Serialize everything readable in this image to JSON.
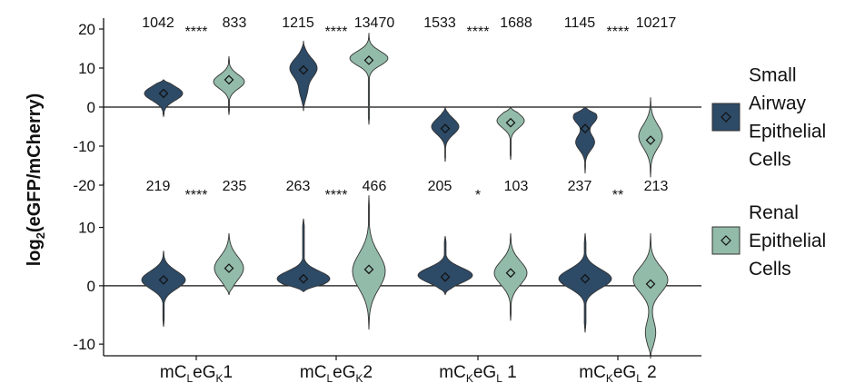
{
  "chart_data": {
    "type": "violin",
    "ylabel": "log2(eGFP/mCherry)",
    "categories": [
      "mCₗeGₖ 1",
      "mCₗeGₖ 2",
      "mCₖeGₗ 1",
      "mCₖeGₗ 2"
    ],
    "category_parts": [
      {
        "pre": "mC",
        "s1": "L",
        "mid": "eG",
        "s2": "K",
        "post": "1"
      },
      {
        "pre": "mC",
        "s1": "L",
        "mid": "eG",
        "s2": "K",
        "post": "2"
      },
      {
        "pre": "mC",
        "s1": "K",
        "mid": "eG",
        "s2": "L",
        "post": " 1"
      },
      {
        "pre": "mC",
        "s1": "K",
        "mid": "eG",
        "s2": "L",
        "post": " 2"
      }
    ],
    "legend_position": "right",
    "series": [
      {
        "name": "Small Airway Epithelial Cells",
        "legend_lines": [
          "Small",
          "Airway",
          "Epithelial",
          "Cells"
        ],
        "color": "#2d4a66"
      },
      {
        "name": "Renal Epithelial Cells",
        "legend_lines": [
          "Renal",
          "Epithelial",
          "Cells"
        ],
        "color": "#93bba9"
      }
    ],
    "panels": [
      {
        "ylim": [
          -20,
          20
        ],
        "yticks": [
          -20,
          -10,
          0,
          10,
          20
        ],
        "groups": [
          {
            "n": [
              "1042",
              "833"
            ],
            "sig": "****",
            "violins": [
              {
                "ymin": -2.5,
                "ymax": 7,
                "mean": 3.5,
                "modes": [
                  [
                    3.5,
                    1.8,
                    1.0
                  ]
                ],
                "maxw": 42
              },
              {
                "ymin": -2,
                "ymax": 13,
                "mean": 7,
                "modes": [
                  [
                    6.5,
                    1.8,
                    1.0
                  ]
                ],
                "maxw": 34
              }
            ]
          },
          {
            "n": [
              "1215",
              "13470"
            ],
            "sig": "****",
            "violins": [
              {
                "ymin": -1,
                "ymax": 17,
                "mean": 9.5,
                "modes": [
                  [
                    10,
                    2.5,
                    1.0
                  ],
                  [
                    4,
                    2,
                    0.25
                  ]
                ],
                "maxw": 30
              },
              {
                "ymin": -4.5,
                "ymax": 19,
                "mean": 12,
                "modes": [
                  [
                    12.5,
                    1.8,
                    1.0
                  ]
                ],
                "maxw": 42
              }
            ]
          },
          {
            "n": [
              "1533",
              "1688"
            ],
            "sig": "****",
            "violins": [
              {
                "ymin": -14,
                "ymax": 0,
                "mean": -5.5,
                "modes": [
                  [
                    -5,
                    2,
                    1.0
                  ]
                ],
                "maxw": 30
              },
              {
                "ymin": -13.5,
                "ymax": 0,
                "mean": -4,
                "modes": [
                  [
                    -3.5,
                    1.8,
                    1.0
                  ]
                ],
                "maxw": 30
              }
            ]
          },
          {
            "n": [
              "1145",
              "10217"
            ],
            "sig": "****",
            "violins": [
              {
                "ymin": -17,
                "ymax": 0,
                "mean": -5.5,
                "modes": [
                  [
                    -2.5,
                    1.8,
                    1.0
                  ],
                  [
                    -9,
                    2,
                    0.8
                  ]
                ],
                "maxw": 26
              },
              {
                "ymin": -18,
                "ymax": 2.5,
                "mean": -8.5,
                "modes": [
                  [
                    -7.5,
                    3,
                    1.0
                  ]
                ],
                "maxw": 26
              }
            ]
          }
        ]
      },
      {
        "ylim": [
          -12,
          16
        ],
        "yticks": [
          -10,
          0,
          10
        ],
        "groups": [
          {
            "n": [
              "219",
              "235"
            ],
            "sig": "****",
            "violins": [
              {
                "ymin": -7,
                "ymax": 6,
                "mean": 1,
                "modes": [
                  [
                    1,
                    1.5,
                    1.0
                  ]
                ],
                "maxw": 48
              },
              {
                "ymin": -1.5,
                "ymax": 9,
                "mean": 3,
                "modes": [
                  [
                    3,
                    2,
                    1.0
                  ]
                ],
                "maxw": 32
              }
            ]
          },
          {
            "n": [
              "263",
              "466"
            ],
            "sig": "****",
            "violins": [
              {
                "ymin": -1,
                "ymax": 11.5,
                "mean": 1.2,
                "modes": [
                  [
                    1.2,
                    1.3,
                    1.0
                  ]
                ],
                "maxw": 58
              },
              {
                "ymin": -7.5,
                "ymax": 15.5,
                "mean": 2.8,
                "modes": [
                  [
                    2.5,
                    3,
                    1.0
                  ]
                ],
                "maxw": 36
              }
            ]
          },
          {
            "n": [
              "205",
              "103"
            ],
            "sig": "*",
            "violins": [
              {
                "ymin": -1.5,
                "ymax": 8.5,
                "mean": 1.5,
                "modes": [
                  [
                    1.8,
                    1.3,
                    1.0
                  ]
                ],
                "maxw": 60
              },
              {
                "ymin": -6,
                "ymax": 9,
                "mean": 2.2,
                "modes": [
                  [
                    2.2,
                    2,
                    1.0
                  ]
                ],
                "maxw": 36
              }
            ]
          },
          {
            "n": [
              "237",
              "213"
            ],
            "sig": "**",
            "violins": [
              {
                "ymin": -8,
                "ymax": 9,
                "mean": 1.2,
                "modes": [
                  [
                    1.2,
                    1.6,
                    1.0
                  ]
                ],
                "maxw": 58
              },
              {
                "ymin": -12.5,
                "ymax": 9,
                "mean": 0.3,
                "modes": [
                  [
                    1,
                    2.2,
                    1.0
                  ],
                  [
                    -8,
                    2,
                    0.3
                  ]
                ],
                "maxw": 38
              }
            ]
          }
        ]
      }
    ]
  }
}
